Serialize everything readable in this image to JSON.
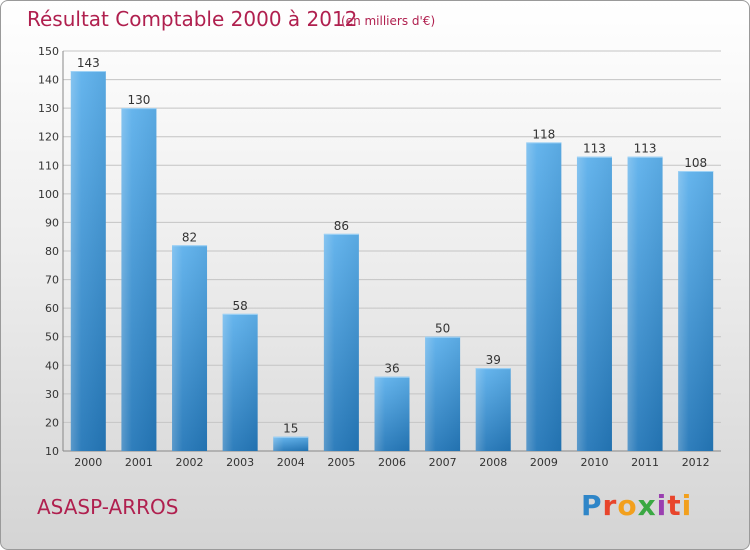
{
  "chart_data": {
    "type": "bar",
    "title": "Résultat Comptable 2000 à 2012",
    "subtitle": "(en milliers d'€)",
    "categories": [
      "2000",
      "2001",
      "2002",
      "2003",
      "2004",
      "2005",
      "2006",
      "2007",
      "2008",
      "2009",
      "2010",
      "2011",
      "2012"
    ],
    "values": [
      143,
      130,
      82,
      58,
      15,
      86,
      36,
      50,
      39,
      118,
      113,
      113,
      108
    ],
    "ylim": [
      10,
      150
    ],
    "yticks": [
      10,
      20,
      30,
      40,
      50,
      60,
      70,
      80,
      90,
      100,
      110,
      120,
      130,
      140,
      150
    ],
    "grid": true,
    "xlabel": "",
    "ylabel": ""
  },
  "commune": "ASASP-ARROS",
  "logo": {
    "p": "P",
    "r": "r",
    "o": "o",
    "x": "x",
    "i1": "i",
    "t": "t",
    "i2": "i"
  },
  "colors": {
    "title": "#b0204f",
    "bar_top": "#5eb1ec",
    "bar_bottom": "#2477b8",
    "grid": "#c4c4c4",
    "axis_text": "#333333"
  }
}
